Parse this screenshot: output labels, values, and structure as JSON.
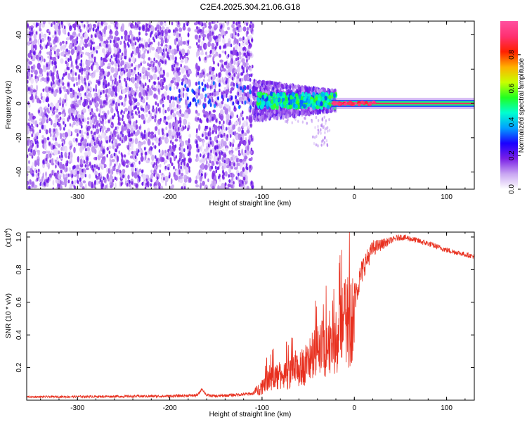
{
  "title": "C2E4.2025.304.21.06.G18",
  "chart_data": [
    {
      "type": "heatmap",
      "title": "C2E4.2025.304.21.06.G18",
      "xlabel": "Height of straight line (km)",
      "ylabel": "Frequency (Hz)",
      "xlim": [
        -355,
        130
      ],
      "ylim": [
        -50,
        48
      ],
      "xticks": [
        -300,
        -200,
        -100,
        0,
        100
      ],
      "yticks": [
        -40,
        -20,
        0,
        20,
        40
      ],
      "xtick_labels": [
        "-300",
        "-200",
        "-100",
        "0",
        "100"
      ],
      "ytick_labels": [
        "-40",
        "-20",
        "0",
        "20",
        "40"
      ],
      "colorbar": {
        "label": "Normalized spectral amplitude",
        "range": [
          0.0,
          1.0
        ],
        "ticks": [
          "0.0",
          "0.2",
          "0.4",
          "0.6",
          "0.8"
        ],
        "colors": [
          "#ffffff",
          "#c9a6f2",
          "#7a1fe6",
          "#1a00ff",
          "#00a0ff",
          "#00ffd0",
          "#20ff20",
          "#c8ff00",
          "#ffb000",
          "#ff2000",
          "#ff3070",
          "#ff50a0"
        ]
      },
      "features": [
        {
          "name": "noise_speckle",
          "x_range": [
            -355,
            -110
          ],
          "f_range": [
            -50,
            48
          ],
          "level": 0.15
        },
        {
          "name": "vertical_gap",
          "x_range": [
            -178,
            -172
          ]
        },
        {
          "name": "transition_cluster",
          "x_range": [
            -110,
            -20
          ],
          "f_range": [
            -8,
            8
          ],
          "level": 0.45
        },
        {
          "name": "tail",
          "x_range": [
            -35,
            -25
          ],
          "f_range": [
            -25,
            -8
          ],
          "level": 0.1
        },
        {
          "name": "carrier_line",
          "x_range": [
            -25,
            130
          ],
          "frequency": 0,
          "level": 0.9
        }
      ]
    },
    {
      "type": "line",
      "xlabel": "Height of straight line (km)",
      "ylabel": "SNR (10 * v/v)",
      "scale_label": "(x10",
      "scale_exponent": "4",
      "xlim": [
        -355,
        130
      ],
      "ylim": [
        0,
        1.03
      ],
      "xticks": [
        -300,
        -200,
        -100,
        0,
        100
      ],
      "yticks": [
        0.2,
        0.4,
        0.6,
        0.8,
        1.0
      ],
      "xtick_labels": [
        "-300",
        "-200",
        "-100",
        "0",
        "100"
      ],
      "ytick_labels": [
        "0.2",
        "0.4",
        "0.6",
        "0.8",
        "1.0"
      ],
      "color": "#e8301f",
      "envelope": {
        "x": [
          -355,
          -200,
          -170,
          -165,
          -160,
          -150,
          -110,
          -100,
          -95,
          -90,
          -80,
          -60,
          -40,
          -20,
          -10,
          0,
          10,
          20,
          40,
          50,
          60,
          80,
          100,
          130
        ],
        "y": [
          0.02,
          0.025,
          0.03,
          0.07,
          0.03,
          0.025,
          0.04,
          0.1,
          0.17,
          0.16,
          0.17,
          0.21,
          0.33,
          0.46,
          0.53,
          0.63,
          0.82,
          0.93,
          0.98,
          1.0,
          0.99,
          0.96,
          0.92,
          0.88
        ]
      },
      "noise_profile": {
        "x": [
          -355,
          -110,
          -105,
          -95,
          -60,
          -20,
          -5,
          0,
          20,
          40,
          130
        ],
        "amp": [
          0.006,
          0.01,
          0.03,
          0.07,
          0.1,
          0.16,
          0.08,
          0.1,
          0.05,
          0.02,
          0.015
        ]
      }
    }
  ]
}
